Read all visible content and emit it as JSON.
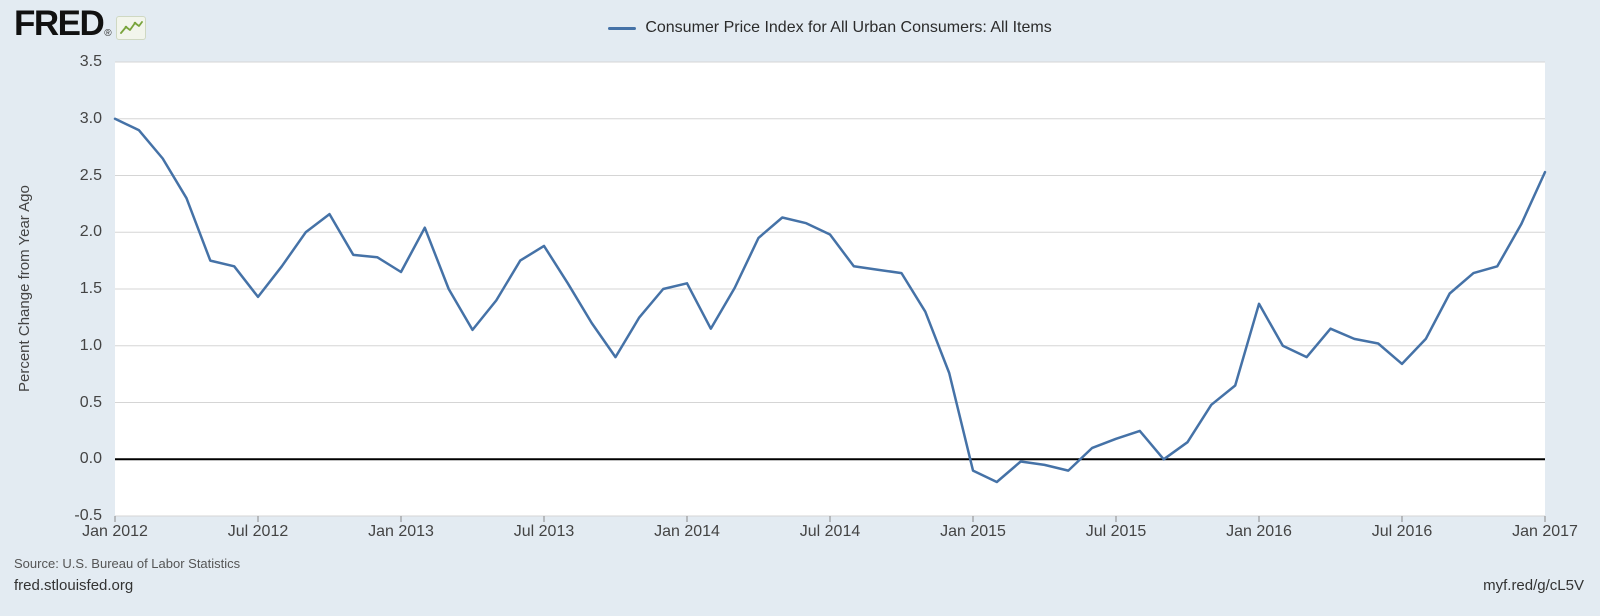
{
  "logo": {
    "text": "FRED",
    "registered": "®",
    "icon": "fred-sparkline-icon"
  },
  "legend": {
    "label": "Consumer Price Index for All Urban Consumers: All Items",
    "line_color": "#4572a7"
  },
  "footer": {
    "source": "Source: U.S. Bureau of Labor Statistics",
    "site": "fred.stlouisfed.org",
    "short_url": "myf.red/g/cL5V"
  },
  "colors": {
    "background": "#e3ebf2",
    "plot_background": "#ffffff",
    "gridline": "#d5d5d5",
    "zero_line": "#000000",
    "series": "#4572a7",
    "tick_text": "#444444",
    "logo_green": "#79a43c"
  },
  "chart_data": {
    "type": "line",
    "title": "Consumer Price Index for All Urban Consumers: All Items",
    "xlabel": "",
    "ylabel": "Percent Change from Year Ago",
    "ylim": [
      -0.5,
      3.5
    ],
    "grid": "horizontal",
    "zero_line": true,
    "legend_position": "top-center",
    "frequency": "monthly",
    "x_range": [
      "2012-01",
      "2017-01"
    ],
    "y_ticks": [
      3.5,
      3.0,
      2.5,
      2.0,
      1.5,
      1.0,
      0.5,
      0.0,
      -0.5
    ],
    "y_tick_labels": [
      "3.5",
      "3.0",
      "2.5",
      "2.0",
      "1.5",
      "1.0",
      "0.5",
      "0.0",
      "-0.5"
    ],
    "x_tick_labels": [
      "Jan 2012",
      "Jul 2012",
      "Jan 2013",
      "Jul 2013",
      "Jan 2014",
      "Jul 2014",
      "Jan 2015",
      "Jul 2015",
      "Jan 2016",
      "Jul 2016",
      "Jan 2017"
    ],
    "x_tick_indices": [
      0,
      6,
      12,
      18,
      24,
      30,
      36,
      42,
      48,
      54,
      60
    ],
    "series": [
      {
        "name": "Consumer Price Index for All Urban Consumers: All Items",
        "color": "#4572a7",
        "values": [
          3.0,
          2.9,
          2.65,
          2.3,
          1.75,
          1.7,
          1.43,
          1.7,
          2.0,
          2.16,
          1.8,
          1.78,
          1.65,
          2.04,
          1.5,
          1.14,
          1.4,
          1.75,
          1.88,
          1.55,
          1.2,
          0.9,
          1.25,
          1.5,
          1.55,
          1.15,
          1.51,
          1.95,
          2.13,
          2.08,
          1.98,
          1.7,
          1.67,
          1.64,
          1.3,
          0.76,
          -0.1,
          -0.2,
          -0.02,
          -0.05,
          -0.1,
          0.1,
          0.18,
          0.25,
          0.0,
          0.15,
          0.48,
          0.65,
          1.37,
          1.0,
          0.9,
          1.15,
          1.06,
          1.02,
          0.84,
          1.06,
          1.46,
          1.64,
          1.7,
          2.07,
          2.53
        ]
      }
    ]
  }
}
